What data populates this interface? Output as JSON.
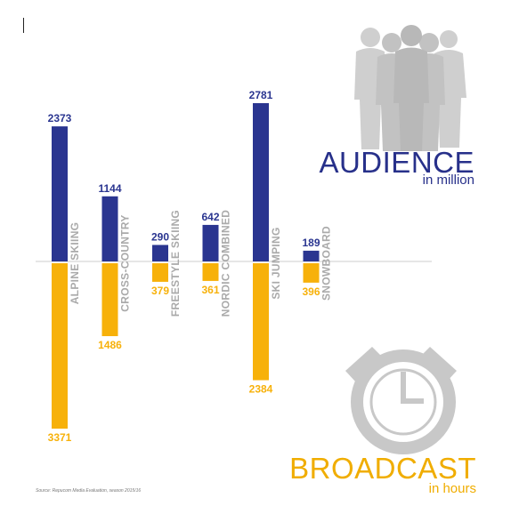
{
  "chart_data": {
    "type": "bar",
    "categories": [
      "ALPINE SKIING",
      "CROSS-COUNTRY",
      "FREESTYLE SKIING",
      "NORDIC COMBINED",
      "SKI JUMPING",
      "SNOWBOARD"
    ],
    "series": [
      {
        "name": "AUDIENCE",
        "unit": "in million",
        "values": [
          2373,
          1144,
          290,
          642,
          2781,
          189
        ]
      },
      {
        "name": "BROADCAST",
        "unit": "in hours",
        "values": [
          3371,
          1486,
          379,
          361,
          2384,
          396
        ]
      }
    ],
    "colors": {
      "audience": "#2a3590",
      "broadcast": "#f7b10a",
      "category_label": "#aaaaaa",
      "axis": "#cccccc",
      "icon": "#c8c8c8"
    }
  },
  "labels": {
    "audience_title": "AUDIENCE",
    "audience_sub": "in million",
    "broadcast_title": "BROADCAST",
    "broadcast_sub": "in hours",
    "source": "Source: Repucom Media Evaluation, season 2015/16"
  },
  "icons": {
    "audience": "people-group-icon",
    "broadcast": "stopwatch-icon"
  }
}
